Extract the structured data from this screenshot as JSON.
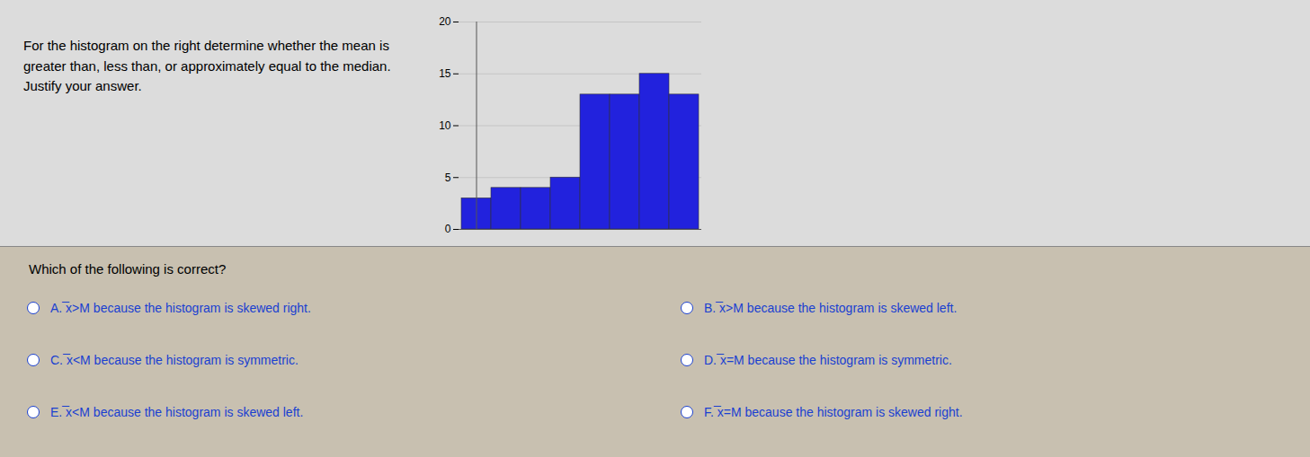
{
  "chart_data": {
    "type": "bar",
    "title": "For the histogram on the right determine whether the mean is\ngreater than, less than, or approximately equal to the median.\nJustify your answer.",
    "categories": [
      null,
      null,
      null,
      null,
      null,
      null,
      null,
      null
    ],
    "values": [
      3,
      4,
      4,
      5,
      13,
      13,
      15,
      13
    ],
    "color": "#2222dd",
    "ylim": [
      0,
      20
    ],
    "yticks": [
      0,
      5,
      10,
      15,
      20
    ],
    "grid": true,
    "tick_labels": "y",
    "annotations": [
      "Which of the following is correct?",
      "A. ̅x>M because the histogram is skewed right.",
      "B. ̅x>M because the histogram is skewed left.",
      "C. ̅x<M because the histogram is symmetric.",
      "D. ̅x=M because the histogram is symmetric.",
      "E. ̅x<M because the histogram is skewed left.",
      "F. ̅x=M because the histogram is skewed right."
    ]
  }
}
